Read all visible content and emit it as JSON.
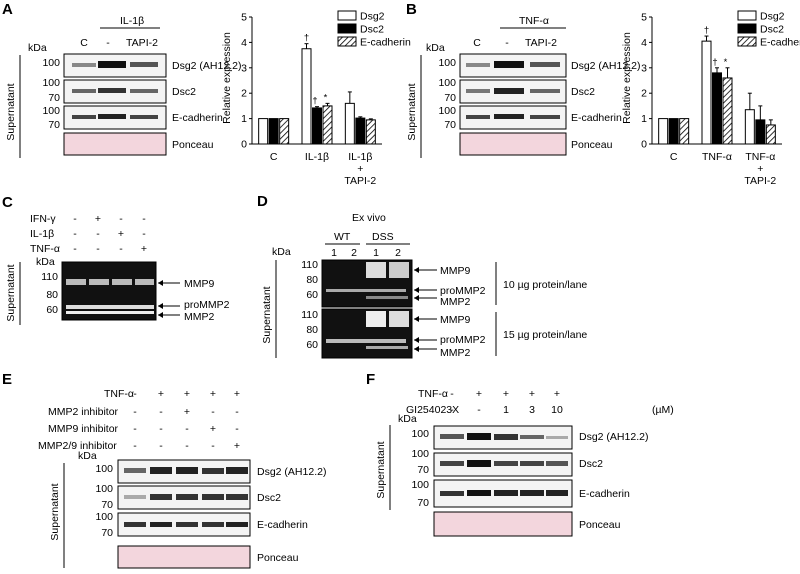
{
  "panels": {
    "A": {
      "letter": "A",
      "group_label": "IL-1β",
      "lanes": [
        "C",
        "-",
        "TAPI-2"
      ],
      "kda_label": "kDa",
      "side_label": "Supernatant",
      "blots": [
        {
          "name": "Dsg2 (AH12.2)",
          "markers": [
            "100"
          ]
        },
        {
          "name": "Dsc2",
          "markers": [
            "100",
            "70"
          ]
        },
        {
          "name": "E-cadherin",
          "markers": [
            "100",
            "70"
          ]
        },
        {
          "name": "Ponceau",
          "markers": []
        }
      ]
    },
    "B": {
      "letter": "B",
      "group_label": "TNF-α",
      "lanes": [
        "C",
        "-",
        "TAPI-2"
      ],
      "kda_label": "kDa",
      "side_label": "Supernatant",
      "blots": [
        {
          "name": "Dsg2 (AH12.2)",
          "markers": [
            "100"
          ]
        },
        {
          "name": "Dsc2",
          "markers": [
            "100",
            "70"
          ]
        },
        {
          "name": "E-cadherin",
          "markers": [
            "100",
            "70"
          ]
        },
        {
          "name": "Ponceau",
          "markers": []
        }
      ]
    },
    "C": {
      "letter": "C",
      "rows": [
        {
          "label": "IFN-γ",
          "signs": [
            "-",
            "+",
            "-",
            "-"
          ]
        },
        {
          "label": "IL-1β",
          "signs": [
            "-",
            "-",
            "+",
            "-"
          ]
        },
        {
          "label": "TNF-α",
          "signs": [
            "-",
            "-",
            "-",
            "+"
          ]
        }
      ],
      "kda_label": "kDa",
      "markers": [
        "110",
        "80",
        "60"
      ],
      "side_label": "Supernatant",
      "arrows": [
        "MMP9",
        "proMMP2",
        "MMP2"
      ]
    },
    "D": {
      "letter": "D",
      "title": "Ex vivo",
      "groups": [
        "WT",
        "DSS"
      ],
      "lanes": [
        "1",
        "2",
        "1",
        "2"
      ],
      "kda_label": "kDa",
      "side_label": "Supernatant",
      "gels": [
        {
          "markers": [
            "110",
            "80",
            "60"
          ],
          "arrows": [
            "MMP9",
            "proMMP2",
            "MMP2"
          ],
          "amount": "10 µg protein/lane"
        },
        {
          "markers": [
            "110",
            "80",
            "60"
          ],
          "arrows": [
            "MMP9",
            "proMMP2",
            "MMP2"
          ],
          "amount": "15 µg protein/lane"
        }
      ]
    },
    "E": {
      "letter": "E",
      "rows": [
        {
          "label": "TNF-α",
          "signs": [
            "-",
            "+",
            "+",
            "+",
            "+"
          ]
        },
        {
          "label": "MMP2 inhibitor",
          "signs": [
            "-",
            "-",
            "+",
            "-",
            "-"
          ]
        },
        {
          "label": "MMP9 inhibitor",
          "signs": [
            "-",
            "-",
            "-",
            "+",
            "-"
          ]
        },
        {
          "label": "MMP2/9 inhibitor",
          "signs": [
            "-",
            "-",
            "-",
            "-",
            "+"
          ]
        }
      ],
      "kda_label": "kDa",
      "side_label": "Supernatant",
      "blots": [
        {
          "name": "Dsg2 (AH12.2)",
          "markers": [
            "100"
          ]
        },
        {
          "name": "Dsc2",
          "markers": [
            "100",
            "70"
          ]
        },
        {
          "name": "E-cadherin",
          "markers": [
            "100",
            "70"
          ]
        },
        {
          "name": "Ponceau",
          "markers": []
        }
      ]
    },
    "F": {
      "letter": "F",
      "rows": [
        {
          "label": "TNF-α",
          "signs": [
            "-",
            "+",
            "+",
            "+",
            "+"
          ]
        },
        {
          "label": "GI254023X",
          "signs": [
            "-",
            "-",
            "1",
            "3",
            "10"
          ],
          "unit": "(µM)"
        }
      ],
      "kda_label": "kDa",
      "side_label": "Supernatant",
      "blots": [
        {
          "name": "Dsg2 (AH12.2)",
          "markers": [
            "100"
          ]
        },
        {
          "name": "Dsc2",
          "markers": [
            "100",
            "70"
          ]
        },
        {
          "name": "E-cadherin",
          "markers": [
            "100",
            "70"
          ]
        },
        {
          "name": "Ponceau",
          "markers": []
        }
      ]
    }
  },
  "chart_data": [
    {
      "panel": "A",
      "type": "bar",
      "categories": [
        "C",
        "IL-1β",
        "IL-1β\n+\nTAPI-2"
      ],
      "series": [
        {
          "name": "Dsg2",
          "values": [
            1.0,
            3.75,
            1.6
          ],
          "errors": [
            0.0,
            0.2,
            0.45
          ],
          "marks": [
            "",
            "†",
            ""
          ]
        },
        {
          "name": "Dsc2",
          "values": [
            1.0,
            1.42,
            1.02
          ],
          "errors": [
            0.0,
            0.05,
            0.05
          ],
          "marks": [
            "",
            "†",
            ""
          ]
        },
        {
          "name": "E-cadherin",
          "values": [
            1.0,
            1.5,
            0.95
          ],
          "errors": [
            0.0,
            0.1,
            0.04
          ],
          "marks": [
            "",
            "*",
            ""
          ]
        }
      ],
      "ylabel": "Relative expression",
      "ylim": [
        0,
        5
      ],
      "yticks": [
        "0",
        "1",
        "2",
        "3",
        "4",
        "5"
      ],
      "legend": "top-right"
    },
    {
      "panel": "B",
      "type": "bar",
      "categories": [
        "C",
        "TNF-α",
        "TNF-α\n+\nTAPI-2"
      ],
      "series": [
        {
          "name": "Dsg2",
          "values": [
            1.0,
            4.05,
            1.35
          ],
          "errors": [
            0.0,
            0.2,
            0.65
          ],
          "marks": [
            "",
            "†",
            ""
          ]
        },
        {
          "name": "Dsc2",
          "values": [
            1.0,
            2.8,
            0.95
          ],
          "errors": [
            0.0,
            0.2,
            0.55
          ],
          "marks": [
            "",
            "†",
            ""
          ]
        },
        {
          "name": "E-cadherin",
          "values": [
            1.0,
            2.6,
            0.75
          ],
          "errors": [
            0.0,
            0.4,
            0.2
          ],
          "marks": [
            "",
            "*",
            ""
          ]
        }
      ],
      "ylabel": "Relative expression",
      "ylim": [
        0,
        5
      ],
      "yticks": [
        "0",
        "1",
        "2",
        "3",
        "4",
        "5"
      ],
      "legend": "top-right"
    }
  ]
}
